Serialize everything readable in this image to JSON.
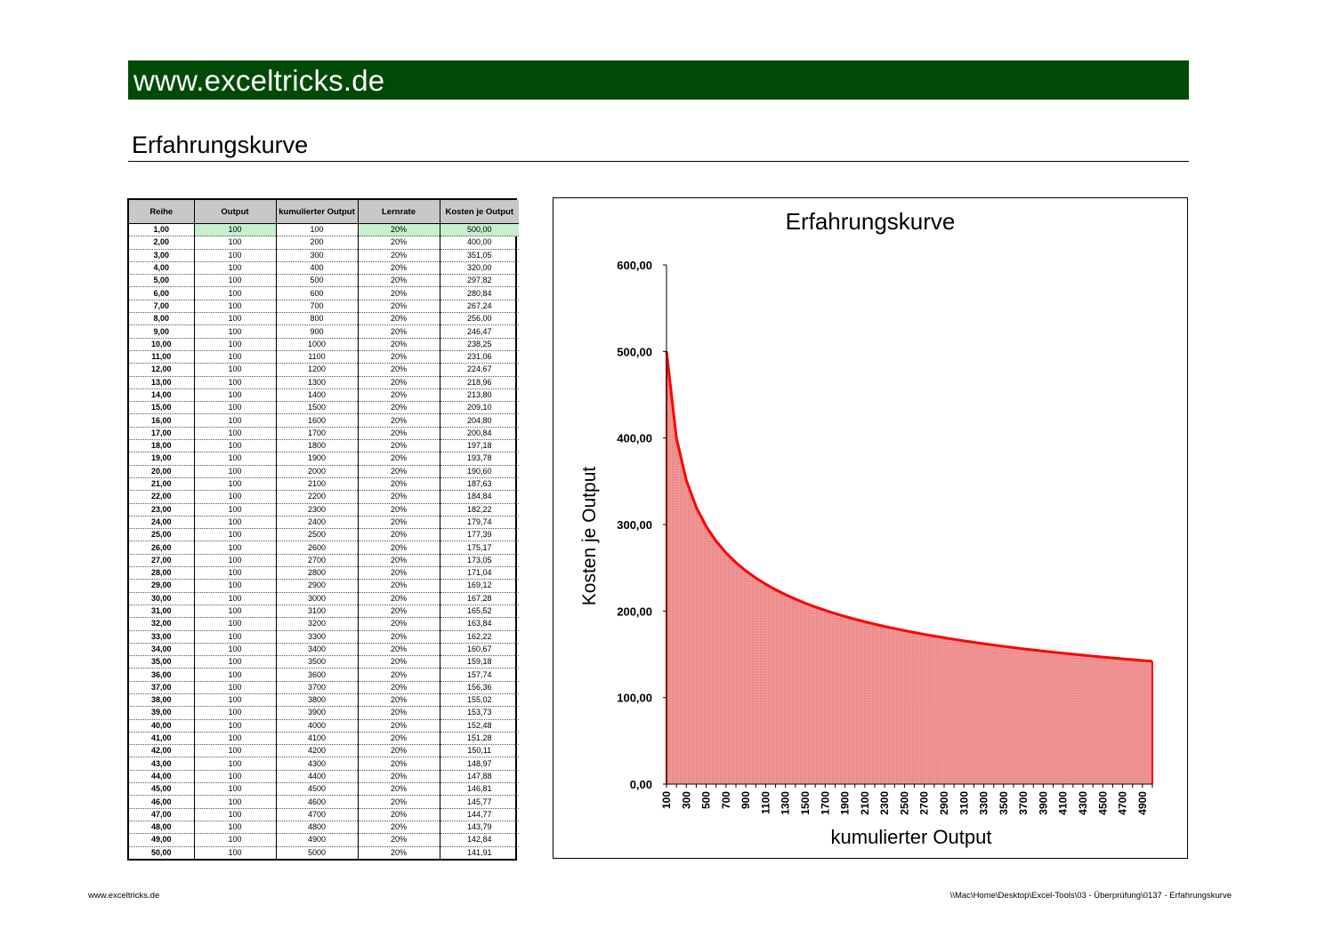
{
  "banner": {
    "text": "www.exceltricks.de",
    "color": "#004a05"
  },
  "page_title": "Erfahrungskurve",
  "table": {
    "headers": [
      "Reihe",
      "Output",
      "kumulierter Output",
      "Lernrate",
      "Kosten je Output"
    ],
    "rows": [
      [
        "1,00",
        "100",
        "100",
        "20%",
        "500,00"
      ],
      [
        "2,00",
        "100",
        "200",
        "20%",
        "400,00"
      ],
      [
        "3,00",
        "100",
        "300",
        "20%",
        "351,05"
      ],
      [
        "4,00",
        "100",
        "400",
        "20%",
        "320,00"
      ],
      [
        "5,00",
        "100",
        "500",
        "20%",
        "297,82"
      ],
      [
        "6,00",
        "100",
        "600",
        "20%",
        "280,84"
      ],
      [
        "7,00",
        "100",
        "700",
        "20%",
        "267,24"
      ],
      [
        "8,00",
        "100",
        "800",
        "20%",
        "256,00"
      ],
      [
        "9,00",
        "100",
        "900",
        "20%",
        "246,47"
      ],
      [
        "10,00",
        "100",
        "1000",
        "20%",
        "238,25"
      ],
      [
        "11,00",
        "100",
        "1100",
        "20%",
        "231,06"
      ],
      [
        "12,00",
        "100",
        "1200",
        "20%",
        "224,67"
      ],
      [
        "13,00",
        "100",
        "1300",
        "20%",
        "218,96"
      ],
      [
        "14,00",
        "100",
        "1400",
        "20%",
        "213,80"
      ],
      [
        "15,00",
        "100",
        "1500",
        "20%",
        "209,10"
      ],
      [
        "16,00",
        "100",
        "1600",
        "20%",
        "204,80"
      ],
      [
        "17,00",
        "100",
        "1700",
        "20%",
        "200,84"
      ],
      [
        "18,00",
        "100",
        "1800",
        "20%",
        "197,18"
      ],
      [
        "19,00",
        "100",
        "1900",
        "20%",
        "193,78"
      ],
      [
        "20,00",
        "100",
        "2000",
        "20%",
        "190,60"
      ],
      [
        "21,00",
        "100",
        "2100",
        "20%",
        "187,63"
      ],
      [
        "22,00",
        "100",
        "2200",
        "20%",
        "184,84"
      ],
      [
        "23,00",
        "100",
        "2300",
        "20%",
        "182,22"
      ],
      [
        "24,00",
        "100",
        "2400",
        "20%",
        "179,74"
      ],
      [
        "25,00",
        "100",
        "2500",
        "20%",
        "177,39"
      ],
      [
        "26,00",
        "100",
        "2600",
        "20%",
        "175,17"
      ],
      [
        "27,00",
        "100",
        "2700",
        "20%",
        "173,05"
      ],
      [
        "28,00",
        "100",
        "2800",
        "20%",
        "171,04"
      ],
      [
        "29,00",
        "100",
        "2900",
        "20%",
        "169,12"
      ],
      [
        "30,00",
        "100",
        "3000",
        "20%",
        "167,28"
      ],
      [
        "31,00",
        "100",
        "3100",
        "20%",
        "165,52"
      ],
      [
        "32,00",
        "100",
        "3200",
        "20%",
        "163,84"
      ],
      [
        "33,00",
        "100",
        "3300",
        "20%",
        "162,22"
      ],
      [
        "34,00",
        "100",
        "3400",
        "20%",
        "160,67"
      ],
      [
        "35,00",
        "100",
        "3500",
        "20%",
        "159,18"
      ],
      [
        "36,00",
        "100",
        "3600",
        "20%",
        "157,74"
      ],
      [
        "37,00",
        "100",
        "3700",
        "20%",
        "156,36"
      ],
      [
        "38,00",
        "100",
        "3800",
        "20%",
        "155,02"
      ],
      [
        "39,00",
        "100",
        "3900",
        "20%",
        "153,73"
      ],
      [
        "40,00",
        "100",
        "4000",
        "20%",
        "152,48"
      ],
      [
        "41,00",
        "100",
        "4100",
        "20%",
        "151,28"
      ],
      [
        "42,00",
        "100",
        "4200",
        "20%",
        "150,11"
      ],
      [
        "43,00",
        "100",
        "4300",
        "20%",
        "148,97"
      ],
      [
        "44,00",
        "100",
        "4400",
        "20%",
        "147,88"
      ],
      [
        "45,00",
        "100",
        "4500",
        "20%",
        "146,81"
      ],
      [
        "46,00",
        "100",
        "4600",
        "20%",
        "145,77"
      ],
      [
        "47,00",
        "100",
        "4700",
        "20%",
        "144,77"
      ],
      [
        "48,00",
        "100",
        "4800",
        "20%",
        "143,79"
      ],
      [
        "49,00",
        "100",
        "4900",
        "20%",
        "142,84"
      ],
      [
        "50,00",
        "100",
        "5000",
        "20%",
        "141,91"
      ]
    ],
    "header_bg": "#c8c8c8",
    "highlight_color": "#c6efce"
  },
  "chart_data": {
    "type": "area",
    "title": "Erfahrungskurve",
    "xlabel": "kumulierter Output",
    "ylabel": "Kosten je Output",
    "x": [
      100,
      200,
      300,
      400,
      500,
      600,
      700,
      800,
      900,
      1000,
      1100,
      1200,
      1300,
      1400,
      1500,
      1600,
      1700,
      1800,
      1900,
      2000,
      2100,
      2200,
      2300,
      2400,
      2500,
      2600,
      2700,
      2800,
      2900,
      3000,
      3100,
      3200,
      3300,
      3400,
      3500,
      3600,
      3700,
      3800,
      3900,
      4000,
      4100,
      4200,
      4300,
      4400,
      4500,
      4600,
      4700,
      4800,
      4900,
      5000
    ],
    "values": [
      500.0,
      400.0,
      351.05,
      320.0,
      297.82,
      280.84,
      267.24,
      256.0,
      246.47,
      238.25,
      231.06,
      224.67,
      218.96,
      213.8,
      209.1,
      204.8,
      200.84,
      197.18,
      193.78,
      190.6,
      187.63,
      184.84,
      182.22,
      179.74,
      177.39,
      175.17,
      173.05,
      171.04,
      169.12,
      167.28,
      165.52,
      163.84,
      162.22,
      160.67,
      159.18,
      157.74,
      156.36,
      155.02,
      153.73,
      152.48,
      151.28,
      150.11,
      148.97,
      147.88,
      146.81,
      145.77,
      144.77,
      143.79,
      142.84,
      141.91
    ],
    "x_tick_labels": [
      "100",
      "300",
      "500",
      "700",
      "900",
      "1100",
      "1300",
      "1500",
      "1700",
      "1900",
      "2100",
      "2300",
      "2500",
      "2700",
      "2900",
      "3100",
      "3300",
      "3500",
      "3700",
      "3900",
      "4100",
      "4300",
      "4500",
      "4700",
      "4900"
    ],
    "y_tick_labels": [
      "0,00",
      "100,00",
      "200,00",
      "300,00",
      "400,00",
      "500,00",
      "600,00"
    ],
    "y_ticks": [
      0,
      100,
      200,
      300,
      400,
      500,
      600
    ],
    "ylim": [
      0,
      600
    ],
    "grid": false,
    "legend": "none",
    "line_color": "#ff0000",
    "fill_color": "#ee8c8c"
  },
  "footer": {
    "left": "www.exceltricks.de",
    "right": "\\\\Mac\\Home\\Desktop\\Excel-Tools\\03 - Überprüfung\\0137 - Erfahrungskurve"
  }
}
